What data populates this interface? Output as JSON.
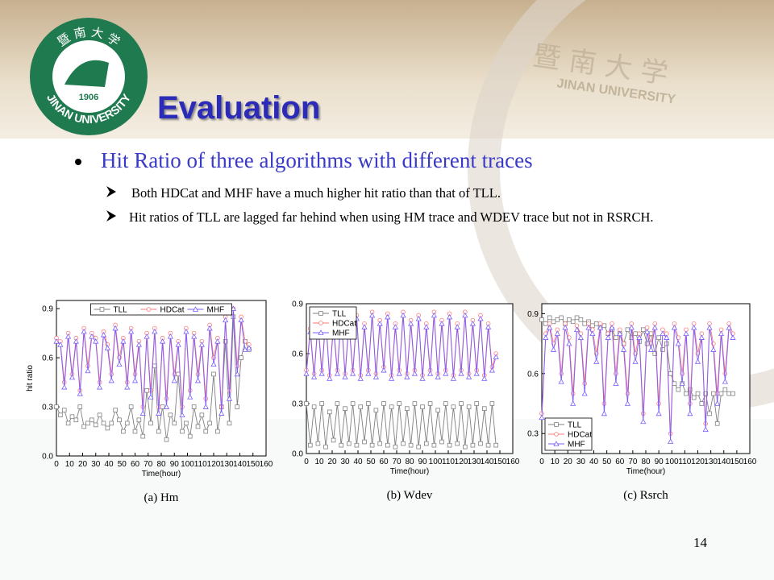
{
  "logo": {
    "chinese": "暨 南 大 学",
    "year": "1906",
    "name": "JINAN UNIVERSITY"
  },
  "watermark": {
    "chinese": "暨 南 大 学",
    "name": "JINAN UNIVERSITY"
  },
  "title": "Evaluation",
  "bullet": "Hit Ratio of three algorithms with different traces",
  "subbullets": [
    "Both HDCat and MHF have a much higher hit ratio than that of TLL.",
    "Hit ratios of TLL are lagged far hehind when using HM trace and WDEV trace but not in RSRCH."
  ],
  "page_number": "14",
  "chart_data": [
    {
      "type": "line",
      "caption": "(a) Hm",
      "xlabel": "Time(hour)",
      "ylabel": "hit ratio",
      "legend": "upper center",
      "xlim": [
        0,
        160
      ],
      "xticks": [
        0,
        10,
        20,
        30,
        40,
        50,
        60,
        70,
        80,
        90,
        100,
        110,
        120,
        130,
        140,
        150,
        160
      ],
      "ylim": [
        0,
        0.95
      ],
      "yticks": [
        {
          "value": 0,
          "label": "0.0"
        },
        0.3,
        0.6,
        0.9
      ],
      "x": [
        0,
        3,
        6,
        9,
        12,
        15,
        18,
        21,
        24,
        27,
        30,
        33,
        36,
        39,
        42,
        45,
        48,
        51,
        54,
        57,
        60,
        63,
        66,
        69,
        72,
        75,
        78,
        81,
        84,
        87,
        90,
        93,
        96,
        99,
        102,
        105,
        108,
        111,
        114,
        117,
        120,
        123,
        126,
        129,
        132,
        135,
        138,
        141,
        144,
        147
      ],
      "series": [
        {
          "name": "TLL",
          "color": "#808080",
          "marker": "square",
          "values": [
            0.3,
            0.25,
            0.28,
            0.2,
            0.24,
            0.22,
            0.3,
            0.18,
            0.2,
            0.22,
            0.19,
            0.25,
            0.2,
            0.17,
            0.2,
            0.28,
            0.22,
            0.15,
            0.2,
            0.3,
            0.15,
            0.22,
            0.12,
            0.4,
            0.2,
            0.55,
            0.15,
            0.3,
            0.1,
            0.25,
            0.2,
            0.5,
            0.15,
            0.2,
            0.12,
            0.3,
            0.18,
            0.25,
            0.15,
            0.2,
            0.5,
            0.15,
            0.3,
            0.7,
            0.2,
            0.85,
            0.3,
            0.6,
            0.7,
            0.65
          ]
        },
        {
          "name": "HDCat",
          "color": "#ff7a7a",
          "marker": "circle",
          "values": [
            0.72,
            0.7,
            0.45,
            0.75,
            0.5,
            0.72,
            0.4,
            0.78,
            0.55,
            0.75,
            0.72,
            0.45,
            0.76,
            0.68,
            0.5,
            0.8,
            0.6,
            0.72,
            0.45,
            0.78,
            0.5,
            0.7,
            0.3,
            0.75,
            0.4,
            0.78,
            0.3,
            0.72,
            0.35,
            0.75,
            0.5,
            0.7,
            0.3,
            0.78,
            0.4,
            0.75,
            0.5,
            0.7,
            0.35,
            0.8,
            0.6,
            0.72,
            0.3,
            0.85,
            0.4,
            0.9,
            0.55,
            0.85,
            0.7,
            0.68
          ]
        },
        {
          "name": "MHF",
          "color": "#7a5cff",
          "marker": "triangle",
          "values": [
            0.7,
            0.68,
            0.42,
            0.73,
            0.48,
            0.7,
            0.38,
            0.76,
            0.52,
            0.73,
            0.7,
            0.42,
            0.74,
            0.66,
            0.46,
            0.78,
            0.56,
            0.7,
            0.42,
            0.76,
            0.46,
            0.68,
            0.26,
            0.73,
            0.36,
            0.76,
            0.26,
            0.7,
            0.3,
            0.73,
            0.46,
            0.68,
            0.25,
            0.76,
            0.36,
            0.73,
            0.46,
            0.68,
            0.3,
            0.78,
            0.56,
            0.7,
            0.26,
            0.83,
            0.35,
            0.9,
            0.5,
            0.83,
            0.65,
            0.66
          ]
        }
      ]
    },
    {
      "type": "line",
      "caption": "(b) Wdev",
      "xlabel": "Time(hour)",
      "legend": "upper left",
      "xlim": [
        0,
        160
      ],
      "xticks": [
        0,
        10,
        20,
        30,
        40,
        50,
        60,
        70,
        80,
        90,
        100,
        110,
        120,
        130,
        140,
        150,
        160
      ],
      "ylim": [
        0,
        0.9
      ],
      "yticks": [
        {
          "value": 0,
          "label": "0.0"
        },
        0.3,
        0.6,
        0.9
      ],
      "x": [
        0,
        3,
        6,
        9,
        12,
        15,
        18,
        21,
        24,
        27,
        30,
        33,
        36,
        39,
        42,
        45,
        48,
        51,
        54,
        57,
        60,
        63,
        66,
        69,
        72,
        75,
        78,
        81,
        84,
        87,
        90,
        93,
        96,
        99,
        102,
        105,
        108,
        111,
        114,
        117,
        120,
        123,
        126,
        129,
        132,
        135,
        138,
        141,
        144,
        147
      ],
      "series": [
        {
          "name": "TLL",
          "color": "#808080",
          "marker": "square",
          "values": [
            0.3,
            0.05,
            0.28,
            0.06,
            0.3,
            0.04,
            0.25,
            0.08,
            0.3,
            0.05,
            0.27,
            0.06,
            0.3,
            0.05,
            0.28,
            0.07,
            0.3,
            0.05,
            0.26,
            0.06,
            0.3,
            0.05,
            0.28,
            0.04,
            0.3,
            0.06,
            0.27,
            0.05,
            0.3,
            0.04,
            0.28,
            0.06,
            0.3,
            0.05,
            0.26,
            0.07,
            0.3,
            0.05,
            0.28,
            0.06,
            0.3,
            0.04,
            0.28,
            0.05,
            0.3,
            0.06,
            0.27,
            0.05,
            0.3,
            0.05
          ]
        },
        {
          "name": "HDCat",
          "color": "#ff7a7a",
          "marker": "circle",
          "values": [
            0.5,
            0.75,
            0.48,
            0.8,
            0.5,
            0.82,
            0.47,
            0.78,
            0.5,
            0.85,
            0.48,
            0.8,
            0.5,
            0.83,
            0.47,
            0.78,
            0.5,
            0.85,
            0.48,
            0.8,
            0.52,
            0.84,
            0.47,
            0.78,
            0.5,
            0.85,
            0.48,
            0.8,
            0.5,
            0.83,
            0.47,
            0.78,
            0.5,
            0.85,
            0.48,
            0.8,
            0.5,
            0.84,
            0.47,
            0.78,
            0.5,
            0.85,
            0.48,
            0.8,
            0.5,
            0.83,
            0.47,
            0.78,
            0.52,
            0.6
          ]
        },
        {
          "name": "MHF",
          "color": "#7a5cff",
          "marker": "triangle",
          "values": [
            0.48,
            0.73,
            0.46,
            0.78,
            0.48,
            0.8,
            0.45,
            0.76,
            0.48,
            0.83,
            0.46,
            0.78,
            0.48,
            0.81,
            0.45,
            0.76,
            0.48,
            0.83,
            0.46,
            0.78,
            0.5,
            0.82,
            0.45,
            0.76,
            0.48,
            0.83,
            0.46,
            0.78,
            0.48,
            0.81,
            0.45,
            0.76,
            0.48,
            0.83,
            0.46,
            0.78,
            0.48,
            0.82,
            0.45,
            0.76,
            0.48,
            0.83,
            0.46,
            0.78,
            0.48,
            0.81,
            0.45,
            0.76,
            0.5,
            0.58
          ]
        }
      ]
    },
    {
      "type": "line",
      "caption": "(c) Rsrch",
      "xlabel": "Time(hour)",
      "legend": "lower left",
      "xlim": [
        0,
        160
      ],
      "xticks": [
        0,
        10,
        20,
        30,
        40,
        50,
        60,
        70,
        80,
        90,
        100,
        110,
        120,
        130,
        140,
        150,
        160
      ],
      "ylim": [
        0.2,
        0.95
      ],
      "yticks": [
        0.3,
        0.6,
        0.9
      ],
      "x": [
        0,
        3,
        6,
        9,
        12,
        15,
        18,
        21,
        24,
        27,
        30,
        33,
        36,
        39,
        42,
        45,
        48,
        51,
        54,
        57,
        60,
        63,
        66,
        69,
        72,
        75,
        78,
        81,
        84,
        87,
        90,
        93,
        96,
        99,
        102,
        105,
        108,
        111,
        114,
        117,
        120,
        123,
        126,
        129,
        132,
        135,
        138,
        141,
        144,
        147
      ],
      "series": [
        {
          "name": "TLL",
          "color": "#808080",
          "marker": "square",
          "values": [
            0.87,
            0.85,
            0.88,
            0.86,
            0.87,
            0.88,
            0.85,
            0.87,
            0.86,
            0.88,
            0.87,
            0.85,
            0.86,
            0.84,
            0.85,
            0.83,
            0.84,
            0.8,
            0.82,
            0.78,
            0.8,
            0.75,
            0.82,
            0.78,
            0.8,
            0.76,
            0.82,
            0.75,
            0.8,
            0.7,
            0.78,
            0.72,
            0.75,
            0.6,
            0.55,
            0.52,
            0.55,
            0.5,
            0.52,
            0.48,
            0.5,
            0.45,
            0.5,
            0.4,
            0.5,
            0.35,
            0.5,
            0.52,
            0.5,
            0.5
          ]
        },
        {
          "name": "HDCat",
          "color": "#ff7a7a",
          "marker": "circle",
          "values": [
            0.4,
            0.8,
            0.85,
            0.75,
            0.82,
            0.6,
            0.85,
            0.78,
            0.5,
            0.84,
            0.8,
            0.55,
            0.85,
            0.82,
            0.7,
            0.85,
            0.45,
            0.8,
            0.85,
            0.6,
            0.82,
            0.75,
            0.5,
            0.85,
            0.7,
            0.8,
            0.4,
            0.83,
            0.75,
            0.85,
            0.45,
            0.82,
            0.8,
            0.3,
            0.85,
            0.78,
            0.6,
            0.82,
            0.45,
            0.85,
            0.7,
            0.8,
            0.35,
            0.85,
            0.75,
            0.5,
            0.82,
            0.6,
            0.85,
            0.8
          ]
        },
        {
          "name": "MHF",
          "color": "#7a5cff",
          "marker": "triangle",
          "values": [
            0.38,
            0.78,
            0.83,
            0.72,
            0.8,
            0.56,
            0.83,
            0.75,
            0.45,
            0.82,
            0.78,
            0.5,
            0.83,
            0.8,
            0.66,
            0.83,
            0.4,
            0.78,
            0.83,
            0.55,
            0.8,
            0.72,
            0.45,
            0.83,
            0.66,
            0.78,
            0.36,
            0.81,
            0.72,
            0.83,
            0.4,
            0.8,
            0.78,
            0.26,
            0.83,
            0.75,
            0.55,
            0.8,
            0.4,
            0.83,
            0.66,
            0.78,
            0.32,
            0.83,
            0.72,
            0.45,
            0.8,
            0.56,
            0.83,
            0.78
          ]
        }
      ]
    }
  ]
}
